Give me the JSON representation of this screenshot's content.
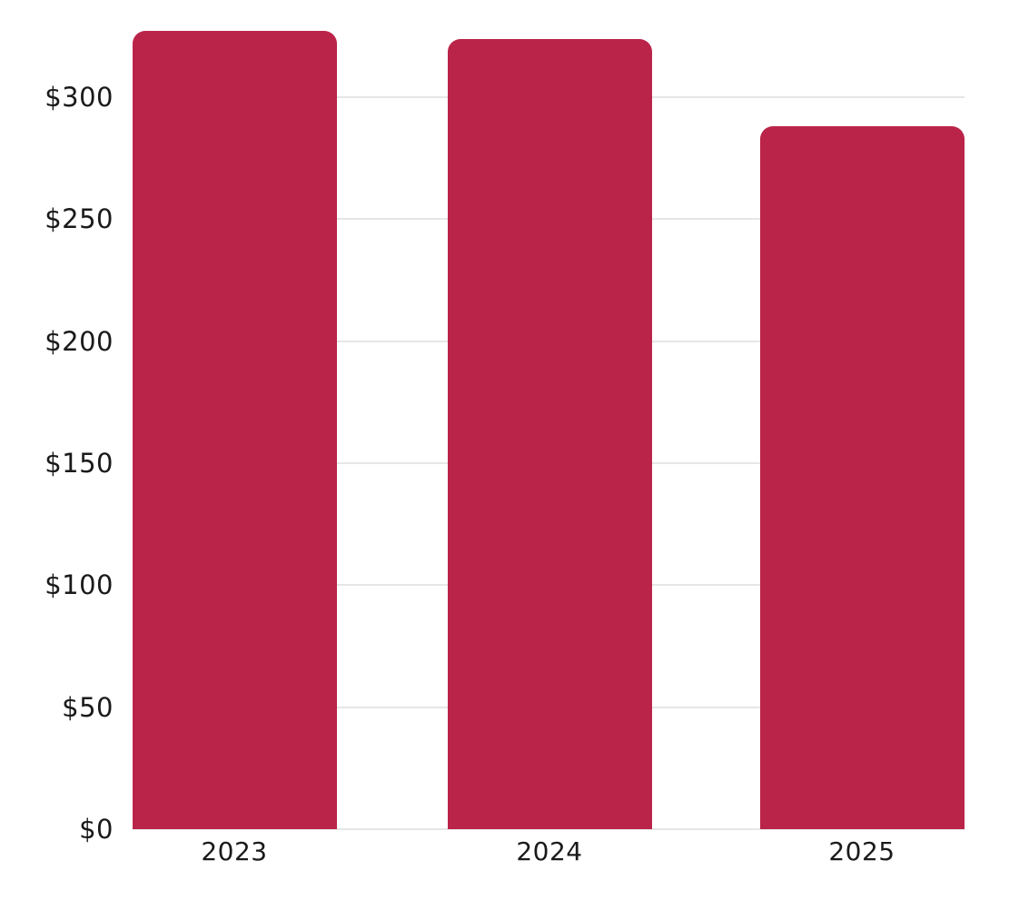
{
  "chart_data": {
    "type": "bar",
    "title": "",
    "xlabel": "",
    "ylabel": "",
    "categories": [
      "2023",
      "2024",
      "2025"
    ],
    "values": [
      327,
      324,
      288
    ],
    "value_prefix": "$",
    "ylim": [
      0,
      340
    ],
    "yticks": [
      0,
      50,
      100,
      150,
      200,
      250,
      300
    ],
    "ytick_labels": [
      "$0",
      "$50",
      "$100",
      "$150",
      "$200",
      "$250",
      "$300"
    ],
    "grid": "horizontal",
    "legend": false,
    "colors": {
      "bar": "#BB2449",
      "gridline": "#e6e6e6",
      "axis_text": "#1a1a1a",
      "background": "#ffffff"
    }
  }
}
